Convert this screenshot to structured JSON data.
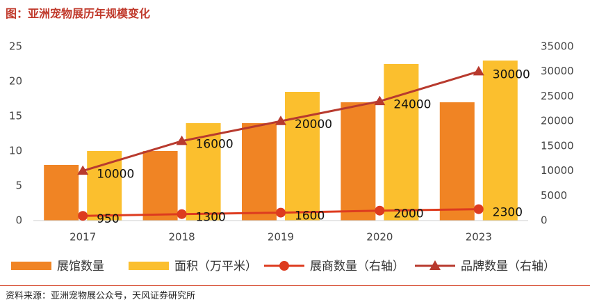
{
  "title": "图：亚洲宠物展历年规模变化",
  "source": "资料来源：亚洲宠物展公众号，天风证券研究所",
  "colors": {
    "halls": "#f08424",
    "area": "#fbbf2e",
    "exhibitors": "#dd3b1f",
    "brands": "#b83a2e",
    "title": "#c0392b",
    "divider": "#d64a2f"
  },
  "chart_data": {
    "type": "bar",
    "categories": [
      "2017",
      "2018",
      "2019",
      "2020",
      "2023"
    ],
    "series": [
      {
        "name": "展馆数量",
        "type": "bar",
        "axis": "left",
        "values": [
          8,
          10,
          14,
          17,
          17
        ]
      },
      {
        "name": "面积（万平米）",
        "type": "bar",
        "axis": "left",
        "values": [
          10,
          14,
          18.5,
          22.5,
          23
        ]
      },
      {
        "name": "展商数量（右轴）",
        "type": "line",
        "axis": "right",
        "marker": "circle",
        "values": [
          950,
          1300,
          1600,
          2000,
          2300
        ],
        "labels": [
          "950",
          "1300",
          "1600",
          "2000",
          "2300"
        ]
      },
      {
        "name": "品牌数量（右轴）",
        "type": "line",
        "axis": "right",
        "marker": "triangle",
        "values": [
          10000,
          16000,
          20000,
          24000,
          30000
        ],
        "labels": [
          "10000",
          "16000",
          "20000",
          "24000",
          "30000"
        ]
      }
    ],
    "y_left": {
      "min": 0,
      "max": 25,
      "ticks": [
        "0",
        "5",
        "10",
        "15",
        "20",
        "25"
      ]
    },
    "y_right": {
      "min": 0,
      "max": 35000,
      "ticks": [
        "0",
        "5000",
        "10000",
        "15000",
        "20000",
        "25000",
        "30000",
        "35000"
      ]
    },
    "grid": false,
    "legend_position": "bottom"
  }
}
